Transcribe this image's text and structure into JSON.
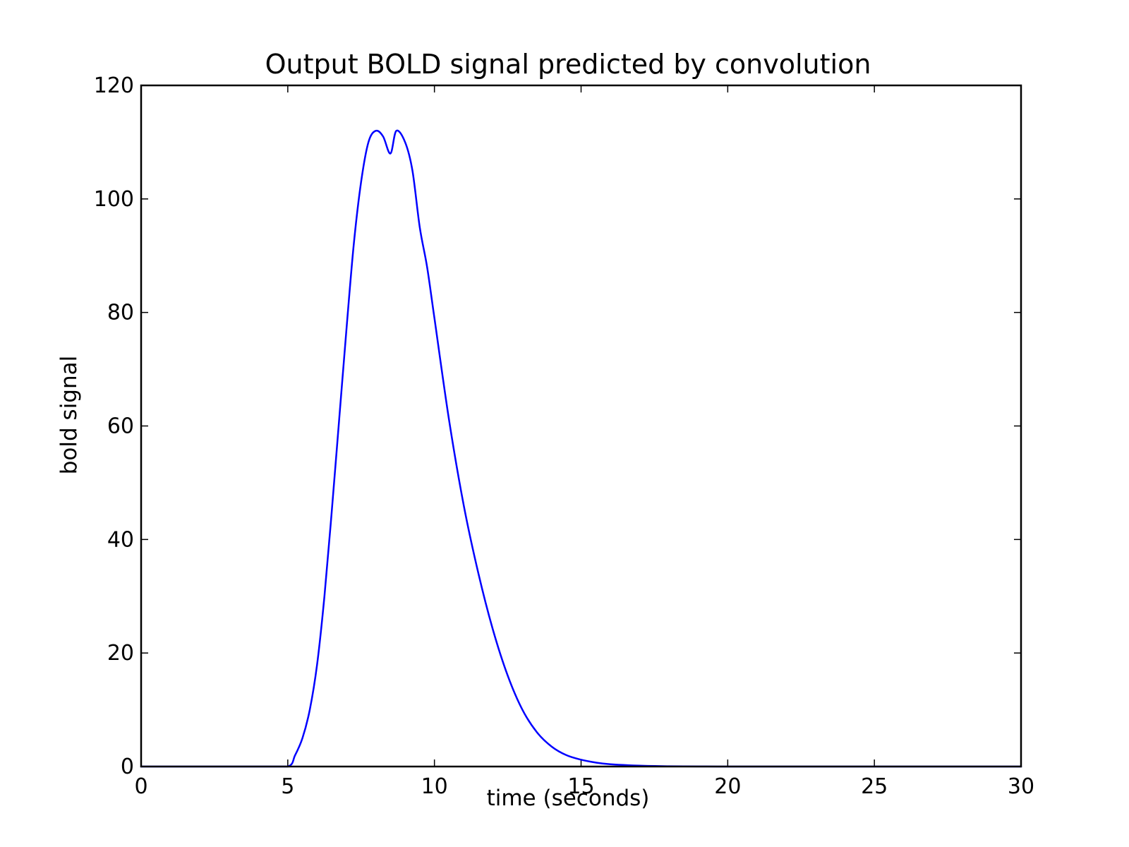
{
  "chart_data": {
    "type": "line",
    "title": "Output BOLD signal predicted by convolution",
    "xlabel": "time (seconds)",
    "ylabel": "bold signal",
    "xlim": [
      0,
      30
    ],
    "ylim": [
      0,
      120
    ],
    "xticks": [
      0,
      5,
      10,
      15,
      20,
      25,
      30
    ],
    "yticks": [
      0,
      20,
      40,
      60,
      80,
      100,
      120
    ],
    "grid": false,
    "series": [
      {
        "color": "#0000ff",
        "x": [
          0,
          1,
          2,
          3,
          4,
          5,
          5.25,
          5.5,
          5.75,
          6,
          6.25,
          6.5,
          6.75,
          7,
          7.25,
          7.5,
          7.75,
          8,
          8.25,
          8.5,
          8.7,
          9,
          9.25,
          9.5,
          9.75,
          10,
          10.5,
          11,
          11.5,
          12,
          12.5,
          13,
          13.5,
          14,
          14.5,
          15,
          15.5,
          16,
          17,
          18,
          19,
          20,
          22,
          25,
          30
        ],
        "y": [
          0,
          0,
          0,
          0,
          0,
          0,
          2,
          5,
          10,
          18,
          30,
          45,
          61,
          77,
          92,
          103,
          110,
          112,
          111,
          108,
          112,
          110,
          105,
          95,
          88,
          79,
          61,
          46,
          34,
          24,
          16,
          10,
          6,
          3.5,
          2,
          1.2,
          0.7,
          0.4,
          0.15,
          0.05,
          0.02,
          0,
          0,
          0,
          0
        ]
      }
    ]
  }
}
